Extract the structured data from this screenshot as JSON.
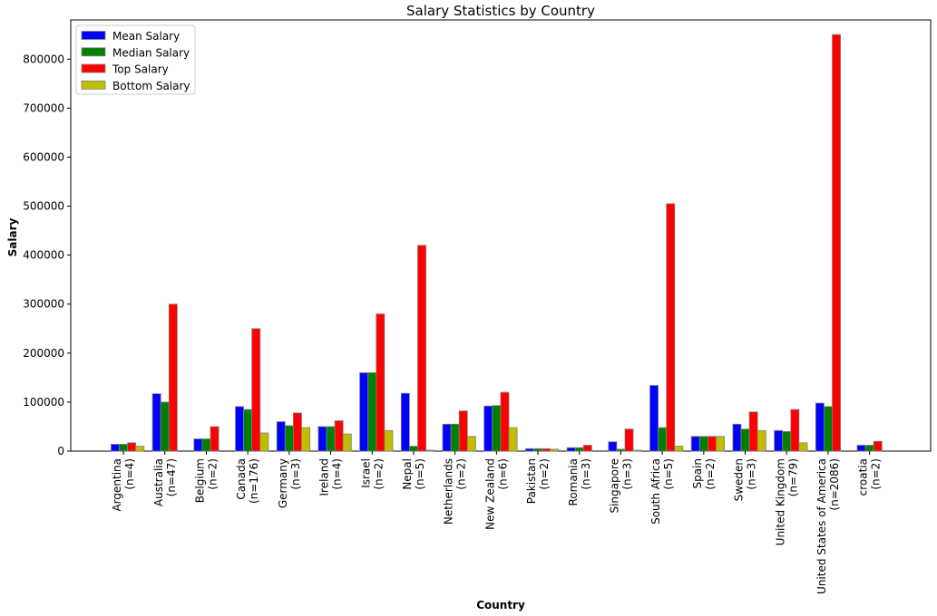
{
  "chart_data": {
    "type": "bar",
    "title": "Salary Statistics by Country",
    "xlabel": "Country",
    "ylabel": "Salary",
    "ylim": [
      0,
      880000
    ],
    "yticks": [
      0,
      100000,
      200000,
      300000,
      400000,
      500000,
      600000,
      700000,
      800000
    ],
    "ytick_labels": [
      "0",
      "100000",
      "200000",
      "300000",
      "400000",
      "500000",
      "600000",
      "700000",
      "800000"
    ],
    "legend_position": "top-left",
    "grid": false,
    "categories": [
      [
        "Argentina",
        "(n=4)"
      ],
      [
        "Australia",
        "(n=47)"
      ],
      [
        "Belgium",
        "(n=2)"
      ],
      [
        "Canada",
        "(n=176)"
      ],
      [
        "Germany",
        "(n=3)"
      ],
      [
        "Ireland",
        "(n=4)"
      ],
      [
        "Israel",
        "(n=2)"
      ],
      [
        "Nepal",
        "(n=5)"
      ],
      [
        "Netherlands",
        "(n=2)"
      ],
      [
        "New Zealand",
        "(n=6)"
      ],
      [
        "Pakistan",
        "(n=2)"
      ],
      [
        "Romania",
        "(n=3)"
      ],
      [
        "Singapore",
        "(n=3)"
      ],
      [
        "South Africa",
        "(n=5)"
      ],
      [
        "Spain",
        "(n=2)"
      ],
      [
        "Sweden",
        "(n=3)"
      ],
      [
        "United Kingdom",
        "(n=79)"
      ],
      [
        "United States of America",
        "(n=2086)"
      ],
      [
        "croatia",
        "(n=2)"
      ]
    ],
    "series": [
      {
        "name": "Mean Salary",
        "color": "#0000ff",
        "values": [
          14000,
          117000,
          25000,
          91000,
          60000,
          50000,
          160000,
          118000,
          55000,
          92000,
          5000,
          7000,
          19000,
          134000,
          30000,
          55000,
          42000,
          98000,
          12000
        ]
      },
      {
        "name": "Median Salary",
        "color": "#008000",
        "values": [
          14000,
          100000,
          25000,
          85000,
          52000,
          50000,
          160000,
          10000,
          55000,
          93000,
          5000,
          7000,
          4000,
          48000,
          30000,
          45000,
          40000,
          91000,
          12000
        ]
      },
      {
        "name": "Top Salary",
        "color": "#ff0000",
        "values": [
          17000,
          300000,
          50000,
          250000,
          78000,
          62000,
          280000,
          420000,
          82000,
          120000,
          5000,
          12000,
          45000,
          505000,
          30000,
          80000,
          85000,
          850000,
          20000
        ]
      },
      {
        "name": "Bottom Salary",
        "color": "#bfbf00",
        "values": [
          10000,
          0,
          0,
          37000,
          48000,
          35000,
          42000,
          2000,
          30000,
          48000,
          4000,
          0,
          2000,
          10000,
          30000,
          42000,
          17000,
          0,
          0
        ]
      }
    ]
  }
}
